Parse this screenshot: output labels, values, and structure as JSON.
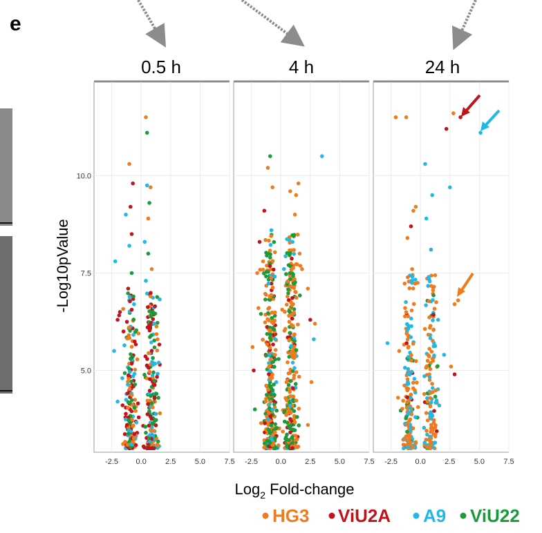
{
  "figure": {
    "panel_label": "e",
    "legend": [
      {
        "name": "HG3",
        "color": "#f07b1c"
      },
      {
        "name": "ViU2A",
        "color": "#c0141c"
      },
      {
        "name": "A9",
        "color": "#22b8e6"
      },
      {
        "name": "ViU22",
        "color": "#1a9a3a"
      }
    ]
  },
  "chart_data": {
    "type": "scatter",
    "xlabel_main": "Log",
    "xlabel_sub": "2",
    "xlabel_rest": " Fold-change",
    "ylabel": "-Log10pValue",
    "xlim": [
      -4,
      7.5
    ],
    "ylim": [
      2.9,
      12.4
    ],
    "x_ticks": [
      "-2.5",
      "0.0",
      "2.5",
      "5.0",
      "7.5"
    ],
    "x_tick_values": [
      -2.5,
      0,
      2.5,
      5,
      7.5
    ],
    "y_ticks": [
      "5.0",
      "7.5",
      "10.0"
    ],
    "y_tick_values": [
      5,
      7.5,
      10
    ],
    "grid": true,
    "legend_position": "bottom-right",
    "facets": [
      {
        "title": "0.5 h",
        "points": [
          {
            "x": 0.4,
            "y": 11.5,
            "s": "HG3"
          },
          {
            "x": 0.5,
            "y": 11.1,
            "s": "ViU22"
          },
          {
            "x": -1.0,
            "y": 10.3,
            "s": "HG3"
          },
          {
            "x": -0.7,
            "y": 9.8,
            "s": "ViU2A"
          },
          {
            "x": 0.5,
            "y": 9.75,
            "s": "A9"
          },
          {
            "x": 0.8,
            "y": 9.7,
            "s": "HG3"
          },
          {
            "x": 0.7,
            "y": 9.3,
            "s": "ViU22"
          },
          {
            "x": -0.9,
            "y": 9.2,
            "s": "ViU2A"
          },
          {
            "x": -1.3,
            "y": 9.0,
            "s": "A9"
          },
          {
            "x": 0.6,
            "y": 8.9,
            "s": "HG3"
          },
          {
            "x": -0.8,
            "y": 8.5,
            "s": "ViU2A"
          },
          {
            "x": 0.3,
            "y": 8.3,
            "s": "A9"
          },
          {
            "x": -1.0,
            "y": 8.2,
            "s": "A9"
          },
          {
            "x": 0.6,
            "y": 8.0,
            "s": "ViU22"
          },
          {
            "x": -2.2,
            "y": 7.8,
            "s": "A9"
          },
          {
            "x": 0.9,
            "y": 7.6,
            "s": "HG3"
          },
          {
            "x": -0.8,
            "y": 7.5,
            "s": "ViU22"
          },
          {
            "x": 0.4,
            "y": 7.3,
            "s": "A9"
          },
          {
            "x": -1.1,
            "y": 7.1,
            "s": "ViU2A"
          },
          {
            "x": 0.8,
            "y": 6.9,
            "s": "HG3"
          },
          {
            "x": -1.8,
            "y": 6.5,
            "s": "ViU2A"
          },
          {
            "x": -2.0,
            "y": 6.3,
            "s": "ViU2A"
          },
          {
            "x": 1.0,
            "y": 6.5,
            "s": "ViU22"
          },
          {
            "x": -0.6,
            "y": 6.7,
            "s": "A9"
          },
          {
            "x": 1.1,
            "y": 6.2,
            "s": "A9"
          },
          {
            "x": -1.5,
            "y": 6.0,
            "s": "ViU2A"
          },
          {
            "x": 1.4,
            "y": 5.8,
            "s": "HG3"
          },
          {
            "x": -2.3,
            "y": 5.5,
            "s": "A9"
          },
          {
            "x": 1.5,
            "y": 5.2,
            "s": "A9"
          },
          {
            "x": -0.9,
            "y": 5.3,
            "s": "ViU22"
          },
          {
            "x": -1.6,
            "y": 4.8,
            "s": "A9"
          },
          {
            "x": 1.3,
            "y": 4.4,
            "s": "ViU22"
          },
          {
            "x": -2.0,
            "y": 4.2,
            "s": "A9"
          },
          {
            "x": 1.6,
            "y": 3.9,
            "s": "HG3"
          },
          {
            "x": -1.2,
            "y": 3.6,
            "s": "ViU2A"
          },
          {
            "x": 0.4,
            "y": 3.4,
            "s": "ViU22"
          }
        ],
        "dense": {
          "seed": 11,
          "count": 380,
          "ymin": 3.0,
          "ymax": 7.0,
          "weights": {
            "HG3": 0.25,
            "ViU2A": 0.3,
            "A9": 0.2,
            "ViU22": 0.25
          }
        }
      },
      {
        "title": "4 h",
        "points": [
          {
            "x": -0.9,
            "y": 10.5,
            "s": "ViU22"
          },
          {
            "x": 3.5,
            "y": 10.5,
            "s": "A9"
          },
          {
            "x": -1.1,
            "y": 10.2,
            "s": "HG3"
          },
          {
            "x": -0.7,
            "y": 9.7,
            "s": "HG3"
          },
          {
            "x": 0.8,
            "y": 9.6,
            "s": "HG3"
          },
          {
            "x": 1.5,
            "y": 9.8,
            "s": "HG3"
          },
          {
            "x": 1.3,
            "y": 9.5,
            "s": "HG3"
          },
          {
            "x": -1.4,
            "y": 9.1,
            "s": "ViU2A"
          },
          {
            "x": 1.2,
            "y": 9.0,
            "s": "HG3"
          },
          {
            "x": -0.8,
            "y": 8.6,
            "s": "A9"
          },
          {
            "x": 1.0,
            "y": 8.3,
            "s": "A9"
          },
          {
            "x": -1.8,
            "y": 8.3,
            "s": "ViU2A"
          },
          {
            "x": 1.6,
            "y": 8.0,
            "s": "HG3"
          },
          {
            "x": -1.5,
            "y": 7.8,
            "s": "HG3"
          },
          {
            "x": 1.8,
            "y": 7.6,
            "s": "HG3"
          },
          {
            "x": -2.0,
            "y": 7.5,
            "s": "HG3"
          },
          {
            "x": 2.3,
            "y": 7.1,
            "s": "HG3"
          },
          {
            "x": -1.9,
            "y": 6.6,
            "s": "HG3"
          },
          {
            "x": 2.5,
            "y": 6.3,
            "s": "ViU2A"
          },
          {
            "x": -2.4,
            "y": 5.6,
            "s": "HG3"
          },
          {
            "x": 2.9,
            "y": 6.2,
            "s": "HG3"
          },
          {
            "x": 2.8,
            "y": 5.8,
            "s": "A9"
          },
          {
            "x": -2.3,
            "y": 5.0,
            "s": "ViU2A"
          },
          {
            "x": 2.6,
            "y": 4.7,
            "s": "HG3"
          },
          {
            "x": -2.2,
            "y": 4.0,
            "s": "ViU22"
          },
          {
            "x": 2.3,
            "y": 3.6,
            "s": "HG3"
          }
        ],
        "dense": {
          "seed": 23,
          "count": 620,
          "ymin": 3.0,
          "ymax": 8.5,
          "weights": {
            "HG3": 0.42,
            "ViU2A": 0.12,
            "A9": 0.08,
            "ViU22": 0.38
          }
        }
      },
      {
        "title": "24 h",
        "points": [
          {
            "x": -2.1,
            "y": 11.5,
            "s": "HG3"
          },
          {
            "x": -1.2,
            "y": 11.5,
            "s": "HG3"
          },
          {
            "x": 3.4,
            "y": 11.5,
            "s": "ViU2A"
          },
          {
            "x": 2.2,
            "y": 11.2,
            "s": "ViU2A"
          },
          {
            "x": 2.8,
            "y": 11.6,
            "s": "HG3"
          },
          {
            "x": 5.1,
            "y": 11.1,
            "s": "A9"
          },
          {
            "x": 7.5,
            "y": 11.0,
            "s": "A9"
          },
          {
            "x": 0.4,
            "y": 10.3,
            "s": "A9"
          },
          {
            "x": 1.0,
            "y": 9.5,
            "s": "A9"
          },
          {
            "x": 2.5,
            "y": 9.7,
            "s": "A9"
          },
          {
            "x": -0.4,
            "y": 9.2,
            "s": "HG3"
          },
          {
            "x": -0.6,
            "y": 9.1,
            "s": "HG3"
          },
          {
            "x": -1.1,
            "y": 8.4,
            "s": "HG3"
          },
          {
            "x": -0.8,
            "y": 8.7,
            "s": "ViU2A"
          },
          {
            "x": 0.5,
            "y": 8.9,
            "s": "A9"
          },
          {
            "x": 0.9,
            "y": 8.1,
            "s": "A9"
          },
          {
            "x": -0.7,
            "y": 7.6,
            "s": "HG3"
          },
          {
            "x": 0.7,
            "y": 7.4,
            "s": "A9"
          },
          {
            "x": 3.2,
            "y": 6.8,
            "s": "HG3"
          },
          {
            "x": 2.9,
            "y": 6.7,
            "s": "HG3"
          },
          {
            "x": -1.3,
            "y": 6.6,
            "s": "HG3"
          },
          {
            "x": 1.5,
            "y": 6.3,
            "s": "A9"
          },
          {
            "x": -2.8,
            "y": 5.7,
            "s": "A9"
          },
          {
            "x": -1.8,
            "y": 5.5,
            "s": "HG3"
          },
          {
            "x": 2.0,
            "y": 5.4,
            "s": "A9"
          },
          {
            "x": 2.6,
            "y": 5.1,
            "s": "HG3"
          },
          {
            "x": 2.9,
            "y": 4.9,
            "s": "ViU2A"
          },
          {
            "x": -1.9,
            "y": 4.3,
            "s": "HG3"
          },
          {
            "x": 1.6,
            "y": 4.1,
            "s": "A9"
          },
          {
            "x": -1.2,
            "y": 3.8,
            "s": "ViU22"
          }
        ],
        "dense": {
          "seed": 37,
          "count": 330,
          "ymin": 3.0,
          "ymax": 7.5,
          "weights": {
            "HG3": 0.52,
            "ViU2A": 0.05,
            "A9": 0.33,
            "ViU22": 0.1
          }
        }
      }
    ]
  }
}
